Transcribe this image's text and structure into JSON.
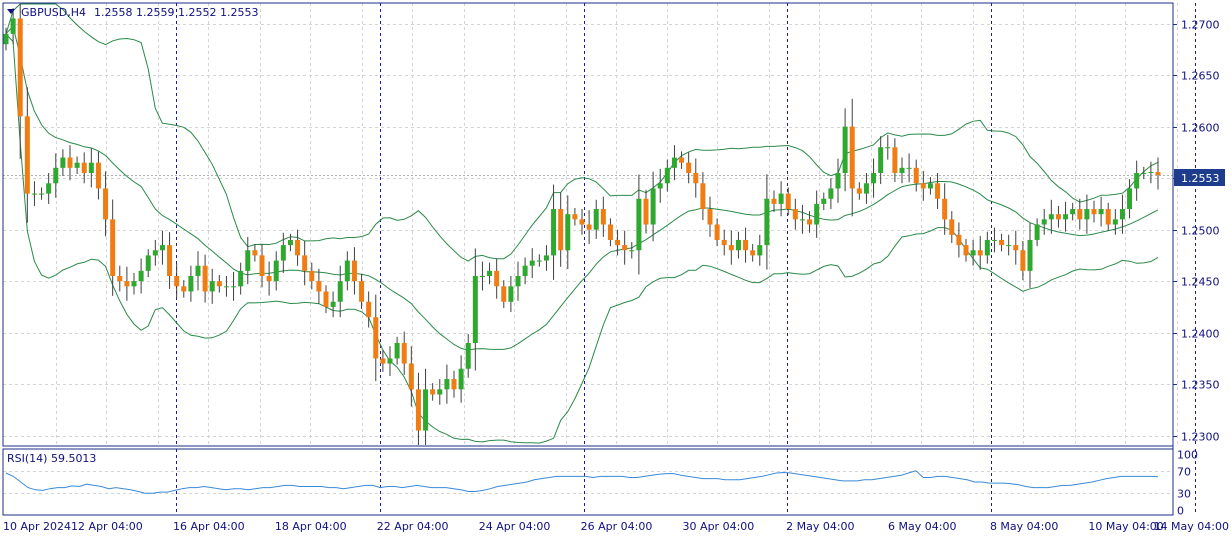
{
  "colors": {
    "background": "#ffffff",
    "frame": "#1c2e8a",
    "grid": "#d4d4d4",
    "separator": "#1a1a9a",
    "bull": "#2ea82e",
    "bear": "#f07c14",
    "wick": "#404040",
    "band": "#2a8a4a",
    "rsi_line": "#3a8ad8",
    "price_tag_bg": "#1e3c8c",
    "price_tag_text": "#ffffff",
    "text": "#101080"
  },
  "header": {
    "symbol_text": "GBPUSD,H4",
    "quote_text": "1.2558 1.2559 1.2552 1.2553",
    "menu_icon": "triangle-down-icon"
  },
  "rsi": {
    "label": "RSI(14) 59.5013",
    "levels": [
      "100",
      "70",
      "30",
      "0"
    ],
    "values": [
      66,
      60,
      50,
      40,
      36,
      35,
      38,
      40,
      40,
      43,
      42,
      46,
      44,
      42,
      38,
      40,
      38,
      36,
      33,
      30,
      30,
      32,
      32,
      35,
      38,
      40,
      40,
      42,
      40,
      38,
      36,
      38,
      38,
      36,
      38,
      40,
      40,
      42,
      44,
      44,
      42,
      42,
      42,
      42,
      40,
      40,
      38,
      40,
      42,
      44,
      44,
      40,
      42,
      42,
      40,
      42,
      44,
      42,
      40,
      40,
      40,
      38,
      36,
      33,
      33,
      35,
      38,
      42,
      44,
      46,
      48,
      50,
      54,
      56,
      58,
      60,
      60,
      60,
      60,
      60,
      58,
      60,
      60,
      60,
      60,
      58,
      58,
      60,
      62,
      64,
      65,
      65,
      62,
      60,
      58,
      56,
      56,
      56,
      54,
      54,
      54,
      56,
      58,
      60,
      63,
      66,
      67,
      66,
      64,
      62,
      60,
      58,
      56,
      54,
      52,
      52,
      52,
      54,
      54,
      56,
      58,
      60,
      62,
      66,
      70,
      58,
      58,
      60,
      60,
      58,
      56,
      54,
      50,
      50,
      48,
      48,
      48,
      47,
      45,
      42,
      40,
      40,
      40,
      42,
      44,
      44,
      46,
      48,
      50,
      53,
      56,
      58,
      60,
      60,
      60,
      60,
      60,
      59.5
    ]
  },
  "chart_data": {
    "type": "candlestick",
    "symbol": "GBPUSD",
    "timeframe": "H4",
    "y_axis": {
      "min": 1.229,
      "max": 1.272,
      "ticks": [
        "1.2300",
        "1.2350",
        "1.2400",
        "1.2450",
        "1.2500",
        "1.2550",
        "1.2600",
        "1.2650",
        "1.2700"
      ],
      "current_price": "1.2553"
    },
    "x_axis_labels": [
      "10 Apr 2024",
      "12 Apr 04:00",
      "16 Apr 04:00",
      "18 Apr 04:00",
      "22 Apr 04:00",
      "24 Apr 04:00",
      "26 Apr 04:00",
      "30 Apr 04:00",
      "2 May 04:00",
      "6 May 04:00",
      "8 May 04:00",
      "10 May 04:00",
      "14 May 04:00"
    ],
    "closes": [
      1.269,
      1.2705,
      1.261,
      1.2535,
      1.2535,
      1.2535,
      1.2545,
      1.256,
      1.257,
      1.256,
      1.2565,
      1.2555,
      1.2565,
      1.254,
      1.251,
      1.2455,
      1.245,
      1.2445,
      1.245,
      1.246,
      1.2475,
      1.248,
      1.2485,
      1.2455,
      1.2445,
      1.244,
      1.2455,
      1.2465,
      1.244,
      1.245,
      1.2445,
      1.2445,
      1.2445,
      1.246,
      1.248,
      1.2475,
      1.2455,
      1.245,
      1.247,
      1.2485,
      1.249,
      1.2475,
      1.246,
      1.245,
      1.244,
      1.2425,
      1.243,
      1.245,
      1.247,
      1.245,
      1.243,
      1.2415,
      1.2375,
      1.237,
      1.2375,
      1.239,
      1.237,
      1.2345,
      1.2305,
      1.2345,
      1.234,
      1.2345,
      1.2355,
      1.2345,
      1.2365,
      1.239,
      1.2455,
      1.2455,
      1.246,
      1.2445,
      1.243,
      1.2445,
      1.2455,
      1.2465,
      1.247,
      1.247,
      1.2475,
      1.252,
      1.248,
      1.2515,
      1.251,
      1.2505,
      1.25,
      1.252,
      1.2505,
      1.249,
      1.2485,
      1.248,
      1.248,
      1.253,
      1.2505,
      1.254,
      1.2545,
      1.256,
      1.257,
      1.2565,
      1.2555,
      1.2545,
      1.252,
      1.2505,
      1.249,
      1.2485,
      1.248,
      1.249,
      1.248,
      1.2475,
      1.2485,
      1.253,
      1.2525,
      1.2535,
      1.252,
      1.251,
      1.251,
      1.2505,
      1.2525,
      1.253,
      1.254,
      1.2555,
      1.26,
      1.254,
      1.2535,
      1.2545,
      1.2555,
      1.258,
      1.258,
      1.2555,
      1.256,
      1.256,
      1.2545,
      1.254,
      1.2545,
      1.253,
      1.251,
      1.2495,
      1.2485,
      1.2475,
      1.248,
      1.2475,
      1.249,
      1.249,
      1.2485,
      1.2485,
      1.248,
      1.246,
      1.249,
      1.2505,
      1.251,
      1.2515,
      1.251,
      1.2515,
      1.252,
      1.251,
      1.252,
      1.2515,
      1.252,
      1.2505,
      1.251,
      1.252,
      1.254,
      1.2555,
      1.2555,
      1.2556,
      1.2553
    ]
  }
}
